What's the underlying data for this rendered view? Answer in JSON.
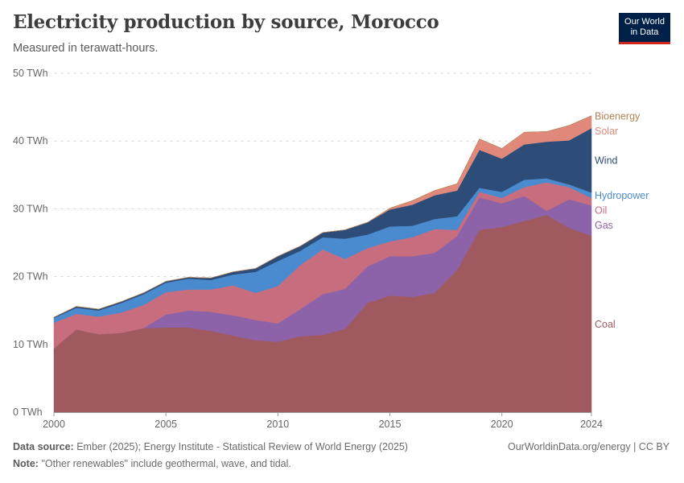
{
  "header": {
    "title": "Electricity production by source, Morocco",
    "subtitle": "Measured in terawatt-hours."
  },
  "logo": {
    "line1": "Our World",
    "line2": "in Data"
  },
  "footer": {
    "source_label": "Data source:",
    "source_text": "Ember (2025); Energy Institute - Statistical Review of World Energy (2025)",
    "right_text": "OurWorldinData.org/energy | CC BY",
    "note_label": "Note:",
    "note_text": "\"Other renewables\" include geothermal, wave, and tidal."
  },
  "chart_data": {
    "type": "area",
    "stacked": true,
    "x": [
      2000,
      2001,
      2002,
      2003,
      2004,
      2005,
      2006,
      2007,
      2008,
      2009,
      2010,
      2011,
      2012,
      2013,
      2014,
      2015,
      2016,
      2017,
      2018,
      2019,
      2020,
      2021,
      2022,
      2023,
      2024
    ],
    "xticks": [
      2000,
      2005,
      2010,
      2015,
      2020,
      2024
    ],
    "ylim": [
      0,
      50
    ],
    "yticks": [
      0,
      10,
      20,
      30,
      40,
      50
    ],
    "ytick_labels": [
      "0 TWh",
      "10 TWh",
      "20 TWh",
      "30 TWh",
      "40 TWh",
      "50 TWh"
    ],
    "grid": "horizontal dashed",
    "legend": "right, inline labels",
    "series": [
      {
        "name": "Coal",
        "color": "#a05a5f",
        "values": [
          9.4,
          12.2,
          11.5,
          11.7,
          12.4,
          12.5,
          12.5,
          12.0,
          11.3,
          10.6,
          10.4,
          11.2,
          11.4,
          12.3,
          16.1,
          17.2,
          17.0,
          17.6,
          21.0,
          26.9,
          27.3,
          28.2,
          29.1,
          27.2,
          26.0
        ]
      },
      {
        "name": "Gas",
        "color": "#8c62a8",
        "values": [
          0.0,
          0.0,
          0.0,
          0.0,
          0.0,
          1.9,
          2.5,
          2.8,
          3.0,
          3.0,
          2.7,
          4.0,
          6.0,
          5.9,
          5.4,
          5.8,
          6.0,
          5.9,
          5.0,
          4.8,
          3.5,
          3.7,
          0.6,
          4.2,
          4.5
        ]
      },
      {
        "name": "Oil",
        "color": "#c86d7e",
        "values": [
          3.8,
          2.3,
          2.6,
          3.0,
          3.4,
          3.3,
          3.1,
          3.3,
          4.4,
          4.0,
          5.5,
          6.5,
          6.6,
          4.4,
          2.7,
          2.2,
          2.8,
          3.5,
          0.9,
          0.8,
          0.8,
          1.3,
          4.2,
          1.8,
          1.1
        ]
      },
      {
        "name": "Hydropower",
        "color": "#4a8bcf",
        "values": [
          0.7,
          0.9,
          0.9,
          1.4,
          1.6,
          1.4,
          1.6,
          1.4,
          1.6,
          3.1,
          3.7,
          2.1,
          1.8,
          3.0,
          2.0,
          2.2,
          1.7,
          1.5,
          2.0,
          0.6,
          0.9,
          1.1,
          0.6,
          0.4,
          0.8
        ]
      },
      {
        "name": "Wind",
        "color": "#2d4d78",
        "values": [
          0.1,
          0.2,
          0.2,
          0.2,
          0.2,
          0.2,
          0.2,
          0.3,
          0.4,
          0.5,
          0.7,
          0.7,
          0.7,
          1.3,
          1.8,
          2.5,
          3.1,
          3.5,
          3.8,
          5.6,
          4.9,
          5.2,
          5.4,
          6.5,
          9.5
        ]
      },
      {
        "name": "Solar",
        "color": "#e0897a",
        "values": [
          0.0,
          0.0,
          0.0,
          0.0,
          0.0,
          0.0,
          0.0,
          0.0,
          0.0,
          0.0,
          0.0,
          0.0,
          0.0,
          0.0,
          0.0,
          0.2,
          0.6,
          0.7,
          1.0,
          1.6,
          1.5,
          1.8,
          1.5,
          2.2,
          1.8
        ]
      },
      {
        "name": "Bioenergy",
        "color": "#b08355",
        "values": [
          0.0,
          0.0,
          0.0,
          0.0,
          0.0,
          0.0,
          0.0,
          0.0,
          0.0,
          0.0,
          0.0,
          0.0,
          0.0,
          0.0,
          0.0,
          0.0,
          0.0,
          0.0,
          0.0,
          0.0,
          0.0,
          0.0,
          0.0,
          0.0,
          0.05
        ]
      }
    ]
  }
}
